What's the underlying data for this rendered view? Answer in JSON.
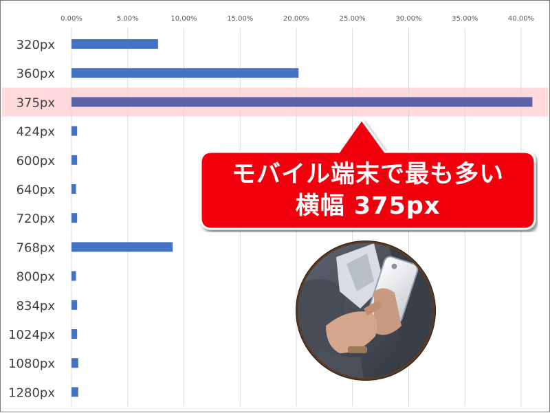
{
  "chart_data": {
    "type": "bar",
    "orientation": "horizontal",
    "categories": [
      "320px",
      "360px",
      "375px",
      "424px",
      "600px",
      "640px",
      "720px",
      "768px",
      "800px",
      "834px",
      "1024px",
      "1080px",
      "1280px"
    ],
    "values": [
      7.7,
      20.2,
      41.0,
      0.5,
      0.5,
      0.4,
      0.5,
      9.0,
      0.4,
      0.5,
      0.5,
      0.6,
      0.6
    ],
    "xlim": [
      0,
      40
    ],
    "x_ticks": [
      "0.00%",
      "5.00%",
      "10.00%",
      "15.00%",
      "20.00%",
      "25.00%",
      "30.00%",
      "35.00%",
      "40.00%"
    ],
    "x_tick_values": [
      0,
      5,
      10,
      15,
      20,
      25,
      30,
      35,
      40
    ],
    "highlight_category": "375px",
    "grid": true,
    "bar_color": "#4472c4",
    "highlight_bar_color": "#5c62a6",
    "highlight_band_color": "#ffd9dc"
  },
  "callout": {
    "line1": "モバイル端末で最も多い",
    "line2": "横幅 375px",
    "color": "#f0000a"
  },
  "photo": {
    "icon": "smartphone-user-photo"
  }
}
